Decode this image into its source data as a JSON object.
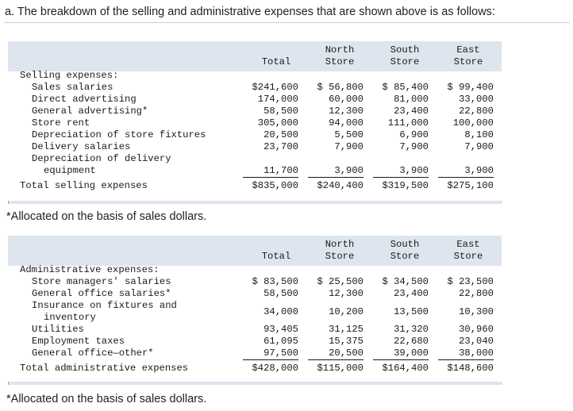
{
  "intro_text": "a. The breakdown of the selling and administrative expenses that are shown above is as follows:",
  "columns": {
    "total": "Total",
    "north_1": "North",
    "north_2": "Store",
    "south_1": "South",
    "south_2": "Store",
    "east_1": "East",
    "east_2": "Store"
  },
  "selling": {
    "heading": "Selling expenses:",
    "rows": [
      {
        "label": "Sales salaries",
        "total": "$241,600",
        "north": "$ 56,800",
        "south": "$ 85,400",
        "east": "$ 99,400"
      },
      {
        "label": "Direct advertising",
        "total": "174,000",
        "north": "60,000",
        "south": "81,000",
        "east": "33,000"
      },
      {
        "label": "General advertising*",
        "total": "58,500",
        "north": "12,300",
        "south": "23,400",
        "east": "22,800"
      },
      {
        "label": "Store rent",
        "total": "305,000",
        "north": "94,000",
        "south": "111,000",
        "east": "100,000"
      },
      {
        "label": "Depreciation of store fixtures",
        "total": "20,500",
        "north": "5,500",
        "south": "6,900",
        "east": "8,100"
      },
      {
        "label": "Delivery salaries",
        "total": "23,700",
        "north": "7,900",
        "south": "7,900",
        "east": "7,900"
      },
      {
        "label": "Depreciation of delivery",
        "label2": "equipment",
        "total": "11,700",
        "north": "3,900",
        "south": "3,900",
        "east": "3,900"
      }
    ],
    "total_row": {
      "label": "Total selling expenses",
      "total": "$835,000",
      "north": "$240,400",
      "south": "$319,500",
      "east": "$275,100"
    }
  },
  "footnote_1": "*Allocated on the basis of sales dollars.",
  "admin": {
    "heading": "Administrative expenses:",
    "rows": [
      {
        "label": "Store managers' salaries",
        "total": "$ 83,500",
        "north": "$ 25,500",
        "south": "$ 34,500",
        "east": "$ 23,500"
      },
      {
        "label": "General office salaries*",
        "total": "58,500",
        "north": "12,300",
        "south": "23,400",
        "east": "22,800"
      },
      {
        "label": "Insurance on fixtures and",
        "label2": "inventory",
        "total": "34,000",
        "north": "10,200",
        "south": "13,500",
        "east": "10,300"
      },
      {
        "label": "Utilities",
        "total": "93,405",
        "north": "31,125",
        "south": "31,320",
        "east": "30,960"
      },
      {
        "label": "Employment taxes",
        "total": "61,095",
        "north": "15,375",
        "south": "22,680",
        "east": "23,040"
      },
      {
        "label": "General office—other*",
        "total": "97,500",
        "north": "20,500",
        "south": "39,000",
        "east": "38,000"
      }
    ],
    "total_row": {
      "label": "Total administrative expenses",
      "total": "$428,000",
      "north": "$115,000",
      "south": "$164,400",
      "east": "$148,600"
    }
  },
  "footnote_2": "*Allocated on the basis of sales dollars."
}
